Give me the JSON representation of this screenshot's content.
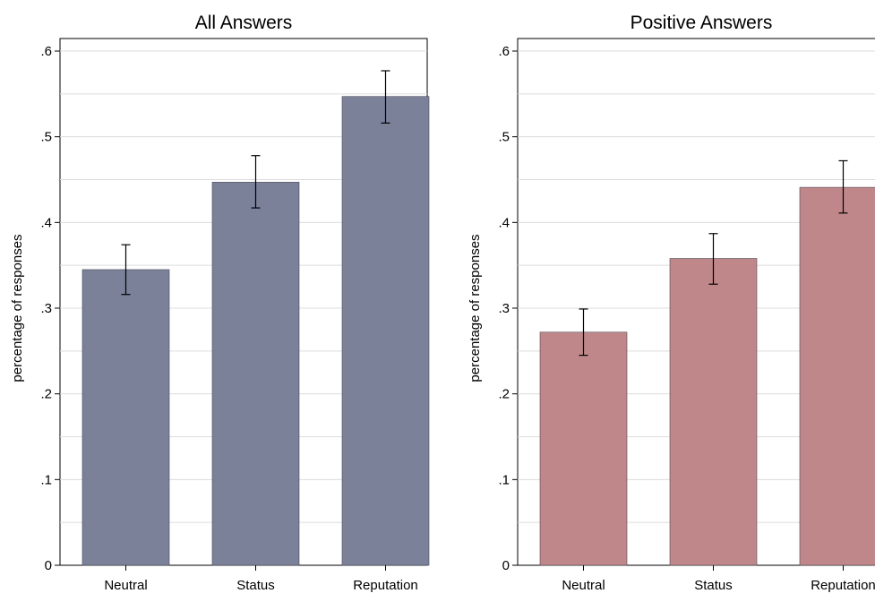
{
  "chart_data": [
    {
      "type": "bar",
      "title": "All Answers",
      "ylabel": "percentage of responses",
      "xlabel": "",
      "categories": [
        "Neutral",
        "Status",
        "Reputation"
      ],
      "values": [
        0.345,
        0.447,
        0.547
      ],
      "error_low": [
        0.316,
        0.417,
        0.516
      ],
      "error_high": [
        0.374,
        0.478,
        0.577
      ],
      "ylim": [
        0,
        0.6
      ],
      "yticks": [
        0,
        0.1,
        0.2,
        0.3,
        0.4,
        0.5,
        0.6
      ],
      "ytick_labels": [
        "0",
        ".1",
        ".2",
        ".3",
        ".4",
        ".5",
        ".6"
      ],
      "grid": true,
      "bar_color": "#7a8199"
    },
    {
      "type": "bar",
      "title": "Positive Answers",
      "ylabel": "percentage of responses",
      "xlabel": "",
      "categories": [
        "Neutral",
        "Status",
        "Reputation"
      ],
      "values": [
        0.272,
        0.358,
        0.441
      ],
      "error_low": [
        0.245,
        0.328,
        0.411
      ],
      "error_high": [
        0.299,
        0.387,
        0.472
      ],
      "ylim": [
        0,
        0.6
      ],
      "yticks": [
        0,
        0.1,
        0.2,
        0.3,
        0.4,
        0.5,
        0.6
      ],
      "ytick_labels": [
        "0",
        ".1",
        ".2",
        ".3",
        ".4",
        ".5",
        ".6"
      ],
      "grid": true,
      "bar_color": "#bf8789"
    }
  ]
}
